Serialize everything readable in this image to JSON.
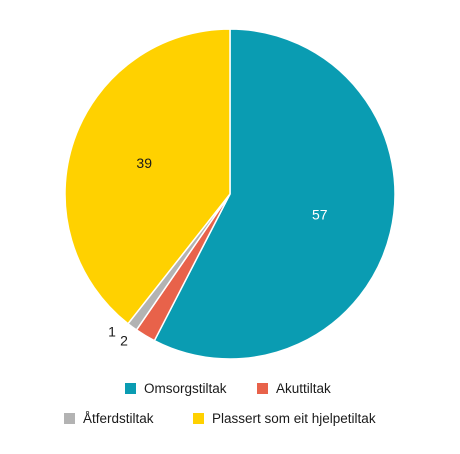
{
  "chart_data": {
    "type": "pie",
    "slices": [
      {
        "label": "Omsorgstiltak",
        "value": 57,
        "color": "#0a9cb2",
        "display": "57",
        "label_color": "#ffffff"
      },
      {
        "label": "Akuttiltak",
        "value": 2,
        "color": "#e8624a",
        "display": "2",
        "label_color": "#1a1a1a"
      },
      {
        "label": "Åtferdstiltak",
        "value": 1,
        "color": "#b3b3b3",
        "display": "1",
        "label_color": "#1a1a1a"
      },
      {
        "label": "Plassert som eit hjelpetiltak",
        "value": 39,
        "color": "#ffd100",
        "display": "39",
        "label_color": "#1a1a1a"
      }
    ],
    "legend_placement": "bottom",
    "start_angle": "12 o'clock, clockwise"
  },
  "legend": {
    "omsorg": "Omsorgstiltak",
    "akutt": "Akuttiltak",
    "atferd": "Åtferdstiltak",
    "hjelpe": "Plassert som eit hjelpetiltak"
  }
}
